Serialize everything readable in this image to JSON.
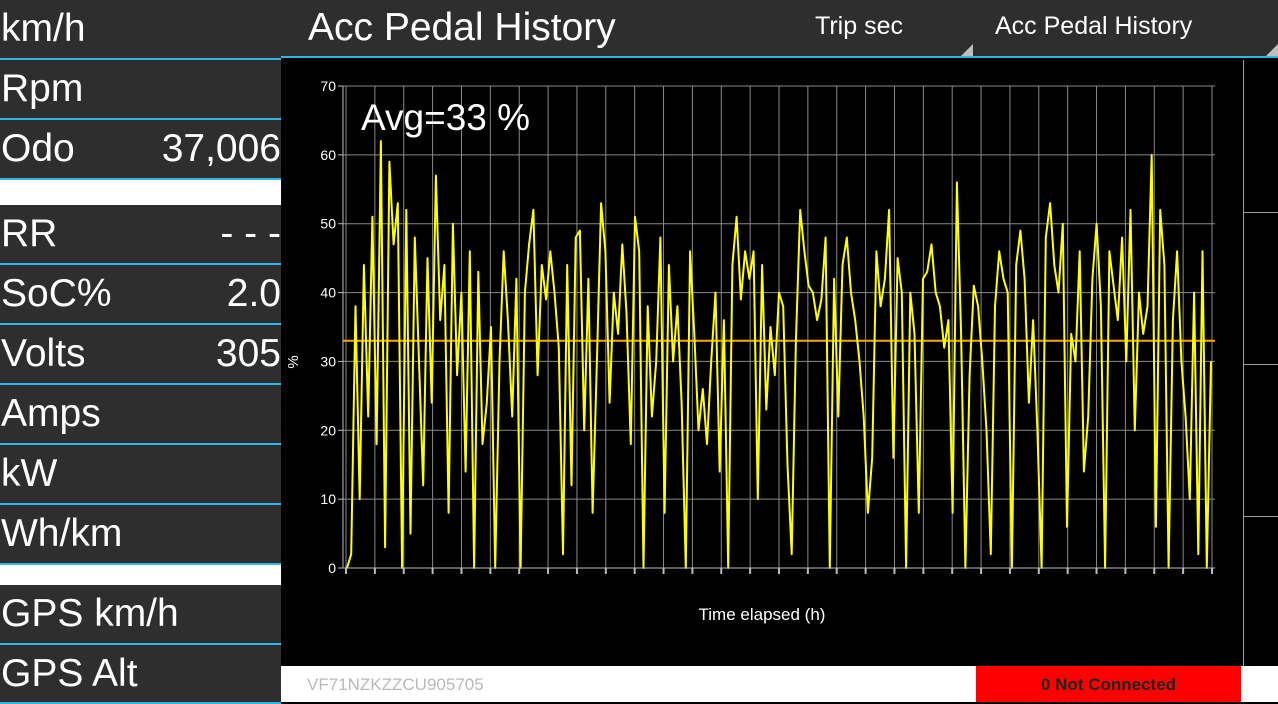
{
  "app": {
    "title": "Acc Pedal History",
    "spinners": [
      "Trip sec",
      "Acc Pedal History"
    ]
  },
  "sidebar": {
    "items": [
      {
        "label": "km/h",
        "value": ""
      },
      {
        "label": "Rpm",
        "value": ""
      },
      {
        "label": "Odo",
        "value": "37,006"
      },
      {
        "label": "RR",
        "value": "- - -"
      },
      {
        "label": "SoC%",
        "value": "2.0"
      },
      {
        "label": "Volts",
        "value": "305"
      },
      {
        "label": "Amps",
        "value": ""
      },
      {
        "label": "kW",
        "value": ""
      },
      {
        "label": "Wh/km",
        "value": ""
      },
      {
        "label": "GPS km/h",
        "value": ""
      },
      {
        "label": "GPS Alt",
        "value": ""
      }
    ]
  },
  "footer": {
    "vin": "VF71NZKZZCU905705",
    "status": "0 Not Connected"
  },
  "colors": {
    "accent": "#33b5e5",
    "series": "#ffff00",
    "average_line": "#ffa500",
    "status_bg": "#ff0000",
    "panel": "#2e2e2e"
  },
  "chart_data": {
    "type": "line",
    "annotation": "Avg=33 %",
    "xlabel": "Time elapsed (h)",
    "ylabel": "%",
    "ylim": [
      0,
      70
    ],
    "yticks": [
      0,
      10,
      20,
      30,
      40,
      50,
      60,
      70
    ],
    "y_tick_labels": [
      "0",
      "10",
      "20",
      "30",
      "40",
      "50",
      "60",
      "70"
    ],
    "x_tick_count": 31,
    "grid": true,
    "average": 33,
    "series": [
      {
        "values": [
          0,
          2,
          38,
          10,
          44,
          22,
          51,
          18,
          62,
          3,
          59,
          47,
          53,
          0,
          52,
          5,
          48,
          30,
          12,
          45,
          24,
          57,
          36,
          44,
          8,
          50,
          28,
          40,
          14,
          46,
          0,
          43,
          18,
          24,
          35,
          0,
          30,
          46,
          36,
          22,
          42,
          0,
          40,
          47,
          52,
          28,
          44,
          39,
          46,
          40,
          32,
          2,
          44,
          12,
          48,
          49,
          20,
          42,
          8,
          30,
          53,
          46,
          24,
          40,
          34,
          47,
          37,
          18,
          51,
          46,
          0,
          38,
          22,
          30,
          48,
          8,
          44,
          30,
          38,
          24,
          0,
          46,
          34,
          20,
          26,
          18,
          30,
          40,
          14,
          36,
          0,
          44,
          51,
          39,
          46,
          42,
          46,
          10,
          44,
          23,
          35,
          28,
          40,
          38,
          15,
          2,
          33,
          52,
          46,
          41,
          40,
          36,
          39,
          48,
          0,
          42,
          22,
          44,
          48,
          40,
          36,
          30,
          22,
          8,
          16,
          46,
          38,
          42,
          52,
          16,
          45,
          40,
          0,
          40,
          34,
          8,
          42,
          43,
          47,
          40,
          38,
          32,
          36,
          8,
          56,
          34,
          0,
          28,
          41,
          38,
          30,
          20,
          2,
          38,
          46,
          42,
          40,
          0,
          44,
          49,
          42,
          24,
          36,
          20,
          0,
          48,
          53,
          44,
          40,
          50,
          6,
          34,
          30,
          46,
          14,
          22,
          42,
          50,
          38,
          0,
          46,
          41,
          36,
          48,
          30,
          52,
          20,
          40,
          34,
          38,
          60,
          6,
          52,
          44,
          0,
          36,
          46,
          30,
          22,
          10,
          40,
          2,
          46,
          0,
          30
        ]
      }
    ]
  }
}
